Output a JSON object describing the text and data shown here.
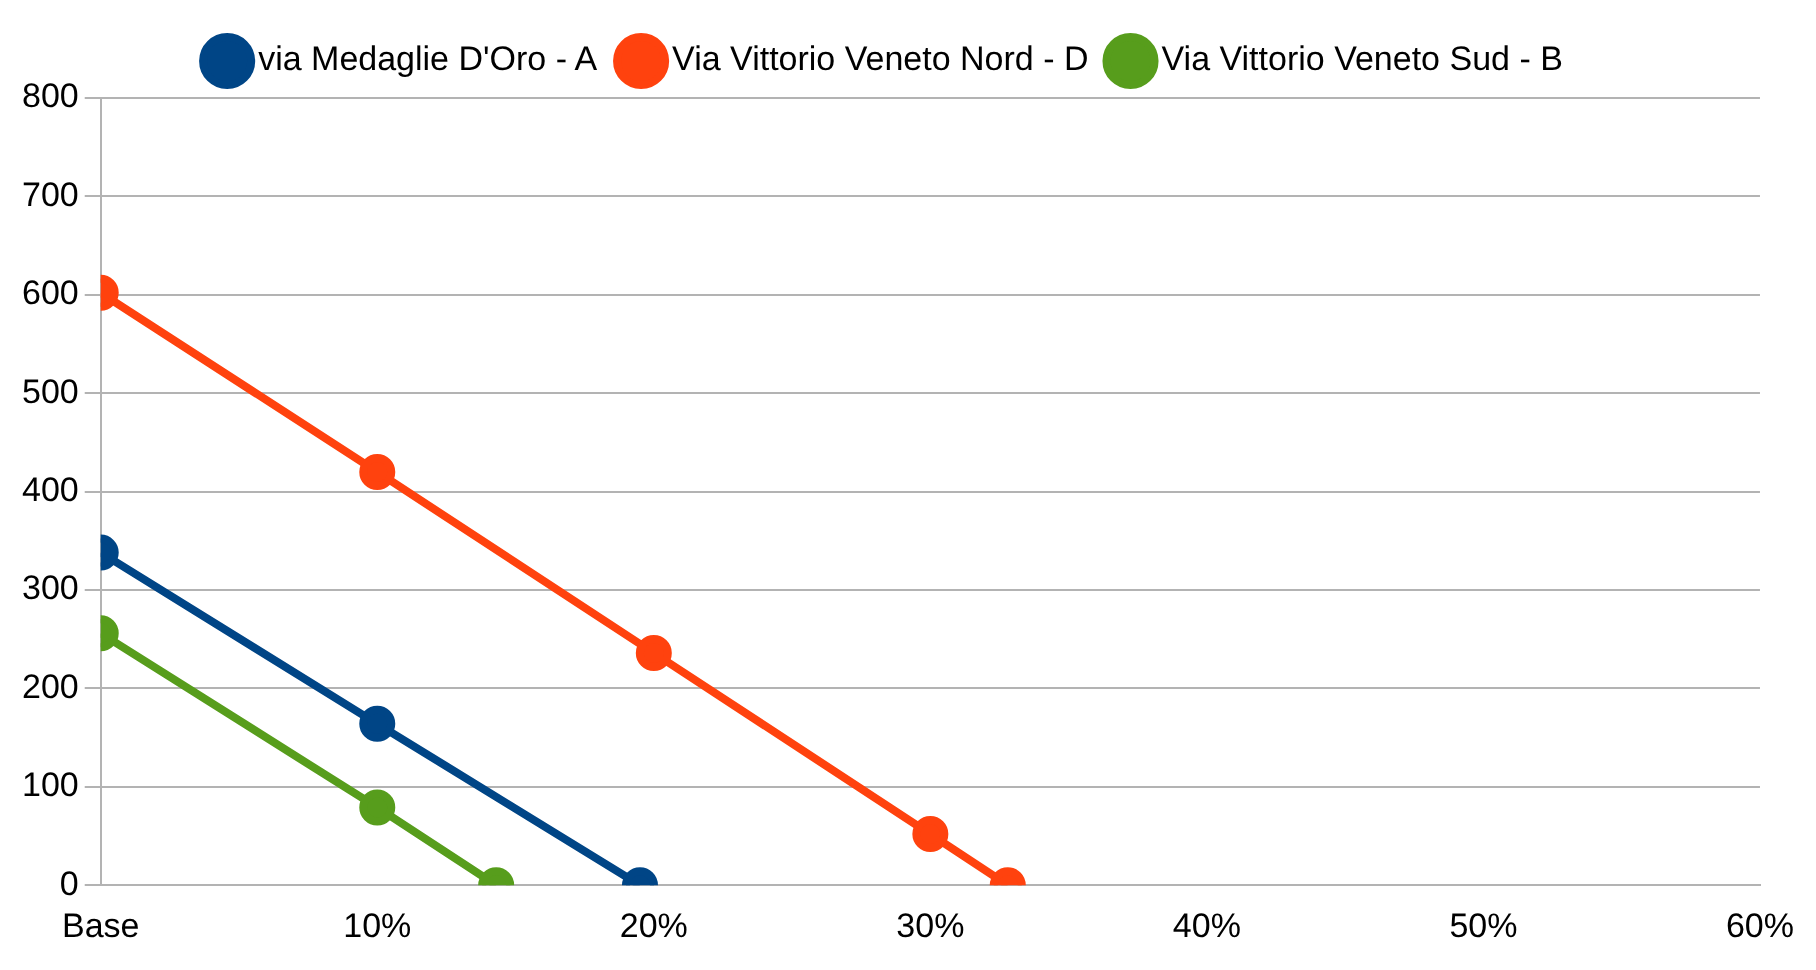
{
  "chart_data": {
    "type": "line",
    "marker": "circle",
    "legend": "top",
    "grid": "y",
    "xlim": [
      0,
      60
    ],
    "xticks": [
      {
        "value": 0,
        "label": "Base"
      },
      {
        "value": 10,
        "label": "10%"
      },
      {
        "value": 20,
        "label": "20%"
      },
      {
        "value": 30,
        "label": "30%"
      },
      {
        "value": 40,
        "label": "40%"
      },
      {
        "value": 50,
        "label": "50%"
      },
      {
        "value": 60,
        "label": "60%"
      }
    ],
    "ylim": [
      0,
      800
    ],
    "yticks": [
      0,
      100,
      200,
      300,
      400,
      500,
      600,
      700,
      800
    ],
    "series": [
      {
        "name": "via Medaglie D'Oro - A",
        "color": "#004586",
        "x": [
          0,
          10,
          19.5
        ],
        "values": [
          338,
          164,
          0
        ]
      },
      {
        "name": "Via Vittorio Veneto Nord - D",
        "color": "#ff420e",
        "x": [
          0,
          10,
          20,
          30,
          32.8
        ],
        "values": [
          602,
          420,
          236,
          52,
          0
        ]
      },
      {
        "name": "Via Vittorio Veneto Sud - B",
        "color": "#579d1c",
        "x": [
          0,
          10,
          14.3
        ],
        "values": [
          256,
          79,
          0
        ]
      }
    ]
  }
}
